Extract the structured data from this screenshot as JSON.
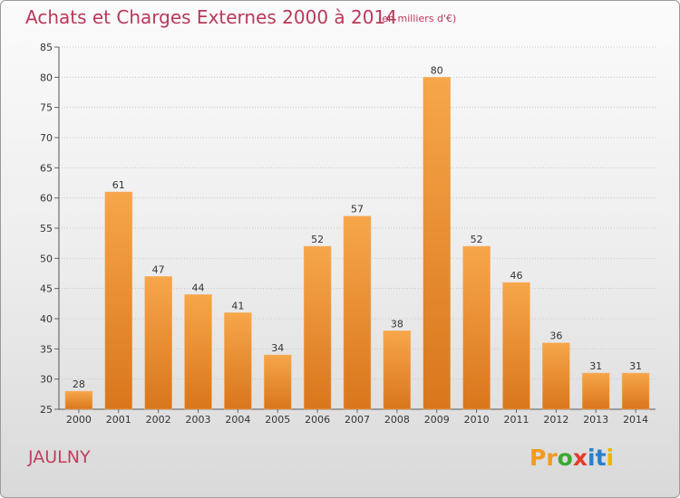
{
  "chart_data": {
    "type": "bar",
    "title": "Achats et Charges Externes 2000 à 2014",
    "subtitle": "(en milliers d'€)",
    "categories": [
      "2000",
      "2001",
      "2002",
      "2003",
      "2004",
      "2005",
      "2006",
      "2007",
      "2008",
      "2009",
      "2010",
      "2011",
      "2012",
      "2013",
      "2014"
    ],
    "values": [
      28,
      61,
      47,
      44,
      41,
      34,
      52,
      57,
      38,
      80,
      52,
      46,
      36,
      31,
      31
    ],
    "ylim": [
      25,
      85
    ],
    "yticks": [
      25,
      30,
      35,
      40,
      45,
      50,
      55,
      60,
      65,
      70,
      75,
      80,
      85
    ],
    "grid": true,
    "bar_color_top": "#f7a64a",
    "bar_color_bottom": "#d9761c"
  },
  "footer": {
    "location": "JAULNY"
  },
  "logo": {
    "letters": [
      "P",
      "r",
      "o",
      "x",
      "i",
      "t",
      "i"
    ],
    "colors": [
      "#f39a1f",
      "#f39a1f",
      "#3aa935",
      "#e53b2b",
      "#2a7fc9",
      "#2a7fc9",
      "#f0b400"
    ]
  }
}
